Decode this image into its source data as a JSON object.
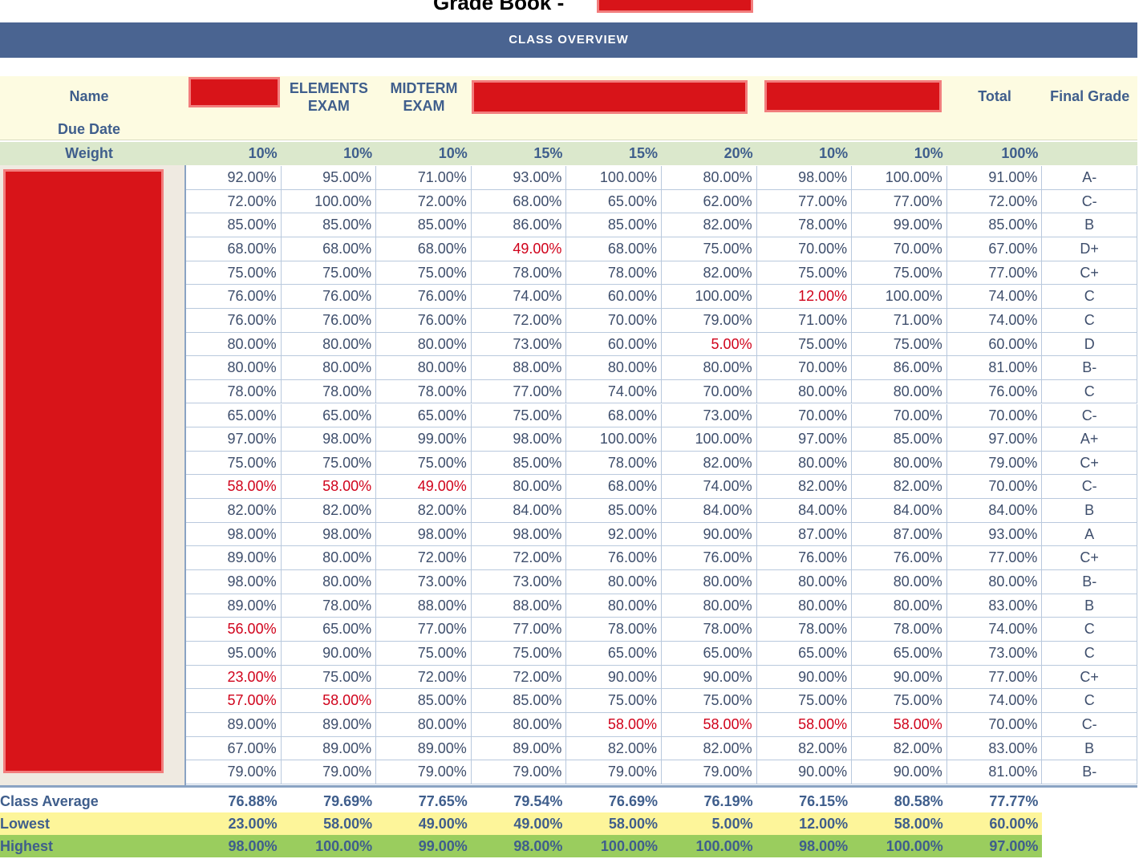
{
  "title": "Grade Book -",
  "banner": "CLASS OVERVIEW",
  "headers": {
    "name": "Name",
    "elements": "ELEMENTS EXAM",
    "midterm": "MIDTERM EXAM",
    "total": "Total",
    "final": "Final Grade"
  },
  "due_date_label": "Due Date",
  "weight_label": "Weight",
  "weights": [
    "10%",
    "10%",
    "10%",
    "15%",
    "15%",
    "20%",
    "10%",
    "10%",
    "100%"
  ],
  "rows": [
    [
      "92.00%",
      "95.00%",
      "71.00%",
      "93.00%",
      "100.00%",
      "80.00%",
      "98.00%",
      "100.00%",
      "91.00%",
      "A-"
    ],
    [
      "72.00%",
      "100.00%",
      "72.00%",
      "68.00%",
      "65.00%",
      "62.00%",
      "77.00%",
      "77.00%",
      "72.00%",
      "C-"
    ],
    [
      "85.00%",
      "85.00%",
      "85.00%",
      "86.00%",
      "85.00%",
      "82.00%",
      "78.00%",
      "99.00%",
      "85.00%",
      "B"
    ],
    [
      "68.00%",
      "68.00%",
      "68.00%",
      {
        "text": "49.00%",
        "color": "#d0021b"
      },
      "68.00%",
      "75.00%",
      "70.00%",
      "70.00%",
      "67.00%",
      "D+"
    ],
    [
      "75.00%",
      "75.00%",
      "75.00%",
      "78.00%",
      "78.00%",
      "82.00%",
      "75.00%",
      "75.00%",
      "77.00%",
      "C+"
    ],
    [
      "76.00%",
      "76.00%",
      "76.00%",
      "74.00%",
      "60.00%",
      "100.00%",
      {
        "text": "12.00%",
        "color": "#d0021b"
      },
      "100.00%",
      "74.00%",
      "C"
    ],
    [
      "76.00%",
      "76.00%",
      "76.00%",
      "72.00%",
      "70.00%",
      "79.00%",
      "71.00%",
      "71.00%",
      "74.00%",
      "C"
    ],
    [
      "80.00%",
      "80.00%",
      "80.00%",
      "73.00%",
      "60.00%",
      {
        "text": "5.00%",
        "color": "#d0021b"
      },
      "75.00%",
      "75.00%",
      "60.00%",
      "D"
    ],
    [
      "80.00%",
      "80.00%",
      "80.00%",
      "88.00%",
      "80.00%",
      "80.00%",
      "70.00%",
      "86.00%",
      "81.00%",
      "B-"
    ],
    [
      "78.00%",
      "78.00%",
      "78.00%",
      "77.00%",
      "74.00%",
      "70.00%",
      "80.00%",
      "80.00%",
      "76.00%",
      "C"
    ],
    [
      "65.00%",
      "65.00%",
      "65.00%",
      "75.00%",
      "68.00%",
      "73.00%",
      "70.00%",
      "70.00%",
      "70.00%",
      "C-"
    ],
    [
      "97.00%",
      "98.00%",
      "99.00%",
      "98.00%",
      "100.00%",
      "100.00%",
      "97.00%",
      "85.00%",
      "97.00%",
      "A+"
    ],
    [
      "75.00%",
      "75.00%",
      "75.00%",
      "85.00%",
      "78.00%",
      "82.00%",
      "80.00%",
      "80.00%",
      "79.00%",
      "C+"
    ],
    [
      {
        "text": "58.00%",
        "color": "#d0021b"
      },
      {
        "text": "58.00%",
        "color": "#d0021b"
      },
      {
        "text": "49.00%",
        "color": "#d0021b"
      },
      "80.00%",
      "68.00%",
      "74.00%",
      "82.00%",
      "82.00%",
      "70.00%",
      "C-"
    ],
    [
      "82.00%",
      "82.00%",
      "82.00%",
      "84.00%",
      "85.00%",
      "84.00%",
      "84.00%",
      "84.00%",
      "84.00%",
      "B"
    ],
    [
      "98.00%",
      "98.00%",
      "98.00%",
      "98.00%",
      "92.00%",
      "90.00%",
      "87.00%",
      "87.00%",
      "93.00%",
      "A"
    ],
    [
      "89.00%",
      "80.00%",
      "72.00%",
      "72.00%",
      "76.00%",
      "76.00%",
      "76.00%",
      "76.00%",
      "77.00%",
      "C+"
    ],
    [
      "98.00%",
      "80.00%",
      "73.00%",
      "73.00%",
      "80.00%",
      "80.00%",
      "80.00%",
      "80.00%",
      "80.00%",
      "B-"
    ],
    [
      "89.00%",
      "78.00%",
      "88.00%",
      "88.00%",
      "80.00%",
      "80.00%",
      "80.00%",
      "80.00%",
      "83.00%",
      "B"
    ],
    [
      {
        "text": "56.00%",
        "color": "#d0021b"
      },
      "65.00%",
      "77.00%",
      "77.00%",
      "78.00%",
      "78.00%",
      "78.00%",
      "78.00%",
      "74.00%",
      "C"
    ],
    [
      "95.00%",
      "90.00%",
      "75.00%",
      "75.00%",
      "65.00%",
      "65.00%",
      "65.00%",
      "65.00%",
      "73.00%",
      "C"
    ],
    [
      {
        "text": "23.00%",
        "color": "#d0021b"
      },
      "75.00%",
      "72.00%",
      "72.00%",
      "90.00%",
      "90.00%",
      "90.00%",
      "90.00%",
      "77.00%",
      "C+"
    ],
    [
      {
        "text": "57.00%",
        "color": "#d0021b"
      },
      {
        "text": "58.00%",
        "color": "#d0021b"
      },
      "85.00%",
      "85.00%",
      "75.00%",
      "75.00%",
      "75.00%",
      "75.00%",
      "74.00%",
      "C"
    ],
    [
      "89.00%",
      "89.00%",
      "80.00%",
      "80.00%",
      {
        "text": "58.00%",
        "color": "#d0021b"
      },
      {
        "text": "58.00%",
        "color": "#d0021b"
      },
      {
        "text": "58.00%",
        "color": "#d0021b"
      },
      {
        "text": "58.00%",
        "color": "#d0021b"
      },
      "70.00%",
      "C-"
    ],
    [
      "67.00%",
      "89.00%",
      "89.00%",
      "89.00%",
      "82.00%",
      "82.00%",
      "82.00%",
      "82.00%",
      "83.00%",
      "B"
    ],
    [
      "79.00%",
      "79.00%",
      "79.00%",
      "79.00%",
      "79.00%",
      "79.00%",
      "90.00%",
      "90.00%",
      "81.00%",
      "B-"
    ]
  ],
  "summary": [
    {
      "label": "Class Average",
      "values": [
        "76.88%",
        "79.69%",
        "77.65%",
        "79.54%",
        "76.69%",
        "76.19%",
        "76.15%",
        "80.58%",
        "77.77%"
      ]
    },
    {
      "label": "Lowest",
      "values": [
        "23.00%",
        "58.00%",
        "49.00%",
        "49.00%",
        "58.00%",
        "5.00%",
        "12.00%",
        "58.00%",
        "60.00%"
      ]
    },
    {
      "label": "Highest",
      "values": [
        "98.00%",
        "100.00%",
        "99.00%",
        "98.00%",
        "100.00%",
        "100.00%",
        "98.00%",
        "100.00%",
        "97.00%"
      ]
    }
  ]
}
